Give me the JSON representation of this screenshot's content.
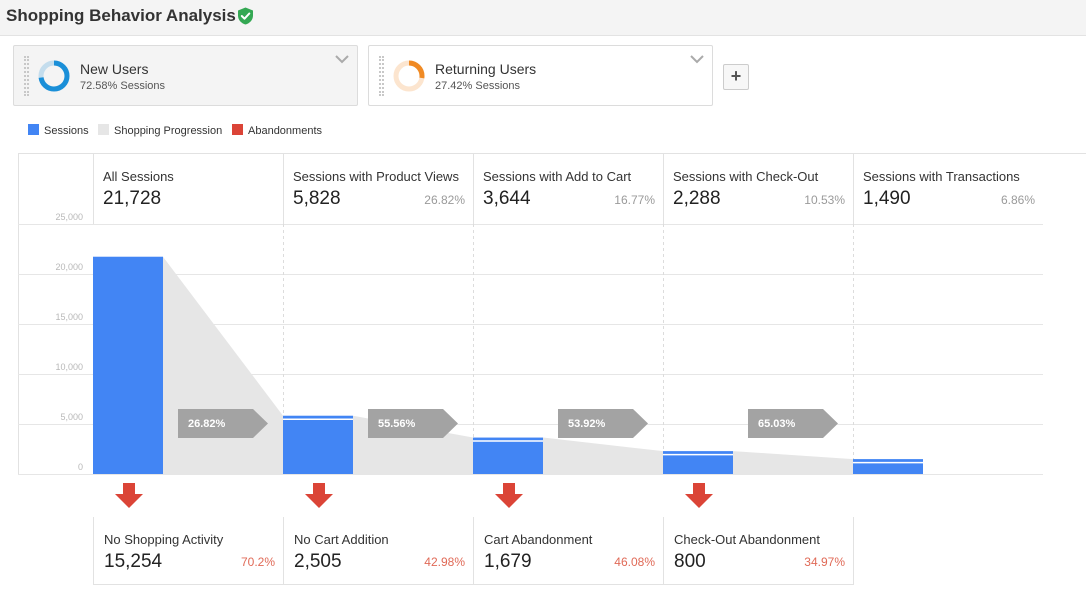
{
  "header": {
    "title": "Shopping Behavior Analysis",
    "verified_icon": "check-shield-icon",
    "verified_color": "#34a853"
  },
  "segments": [
    {
      "name": "New Users",
      "sessions": "72.58% Sessions",
      "share": 0.7258,
      "color": "#1a8fd8"
    },
    {
      "name": "Returning Users",
      "sessions": "27.42% Sessions",
      "share": 0.2742,
      "color": "#f08a24"
    }
  ],
  "add_segment_label": "+",
  "legend": [
    {
      "label": "Sessions",
      "color": "#4285f4"
    },
    {
      "label": "Shopping Progression",
      "color": "#e6e6e6"
    },
    {
      "label": "Abandonments",
      "color": "#db4437"
    }
  ],
  "chart_data": {
    "type": "bar",
    "yticks": [
      "25,000",
      "20,000",
      "15,000",
      "10,000",
      "5,000",
      "0"
    ],
    "ylim": [
      0,
      25000
    ],
    "steps": [
      {
        "name": "All Sessions",
        "value_text": "21,728",
        "value": 21728,
        "pct": ""
      },
      {
        "name": "Sessions with Product Views",
        "value_text": "5,828",
        "value": 5828,
        "pct": "26.82%"
      },
      {
        "name": "Sessions with Add to Cart",
        "value_text": "3,644",
        "value": 3644,
        "pct": "16.77%"
      },
      {
        "name": "Sessions with Check-Out",
        "value_text": "2,288",
        "value": 2288,
        "pct": "10.53%"
      },
      {
        "name": "Sessions with Transactions",
        "value_text": "1,490",
        "value": 1490,
        "pct": "6.86%"
      }
    ],
    "conversions": [
      "26.82%",
      "55.56%",
      "53.92%",
      "65.03%"
    ],
    "abandonments": [
      {
        "name": "No Shopping Activity",
        "value_text": "15,254",
        "pct": "70.2%"
      },
      {
        "name": "No Cart Addition",
        "value_text": "2,505",
        "pct": "42.98%"
      },
      {
        "name": "Cart Abandonment",
        "value_text": "1,679",
        "pct": "46.08%"
      },
      {
        "name": "Check-Out Abandonment",
        "value_text": "800",
        "pct": "34.97%"
      }
    ],
    "colors": {
      "bar": "#4285f4",
      "progression": "#e6e6e6",
      "abandonment": "#db4437",
      "arrow": "#a3a3a3"
    }
  }
}
